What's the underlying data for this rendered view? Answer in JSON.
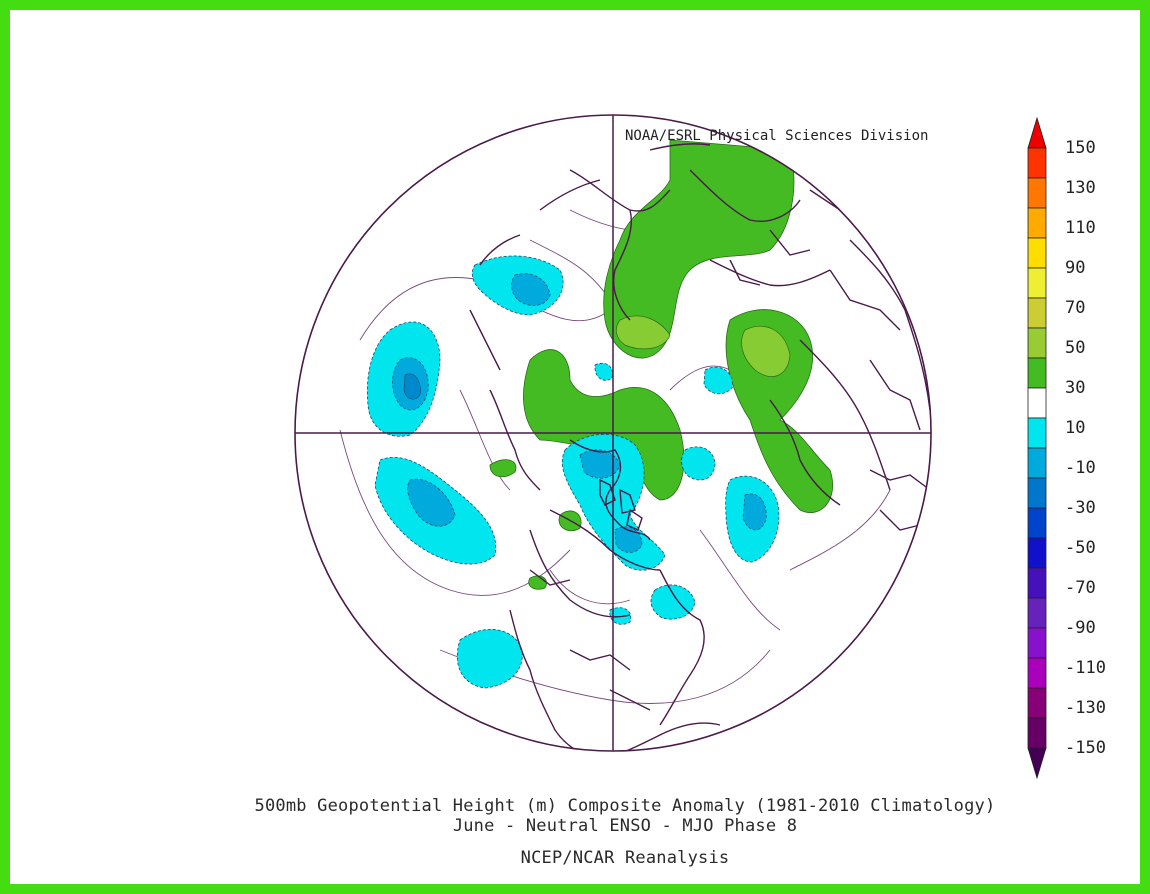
{
  "credit": "NOAA/ESRL Physical Sciences Division",
  "caption": {
    "line1": "500mb Geopotential Height (m) Composite Anomaly (1981-2010 Climatology)",
    "line2": "June - Neutral ENSO - MJO Phase 8",
    "line3": "NCEP/NCAR Reanalysis"
  },
  "colorbar": {
    "labels": [
      "150",
      "130",
      "110",
      "90",
      "70",
      "50",
      "30",
      "10",
      "-10",
      "-30",
      "-50",
      "-70",
      "-90",
      "-110",
      "-130",
      "-150"
    ],
    "colors": [
      "#ee0000",
      "#ff3300",
      "#ff7700",
      "#ffaa00",
      "#ffdd00",
      "#eeee33",
      "#cccc33",
      "#99cc33",
      "#44bb22",
      "#ffffff",
      "#00e5ee",
      "#00aadd",
      "#0077cc",
      "#0044cc",
      "#1111cc",
      "#4411bb",
      "#6622bb",
      "#8811cc",
      "#aa00bb",
      "#880077",
      "#660066",
      "#440055"
    ]
  },
  "map_style": {
    "positive_fill": "#44bb22",
    "positive_inner": "#88cc33",
    "negative_fill": "#00e5ee",
    "negative_inner": "#00aadd",
    "negative_core": "#0088cc",
    "coast_color": "#4a1a4a",
    "frame_color": "#44dd11"
  }
}
